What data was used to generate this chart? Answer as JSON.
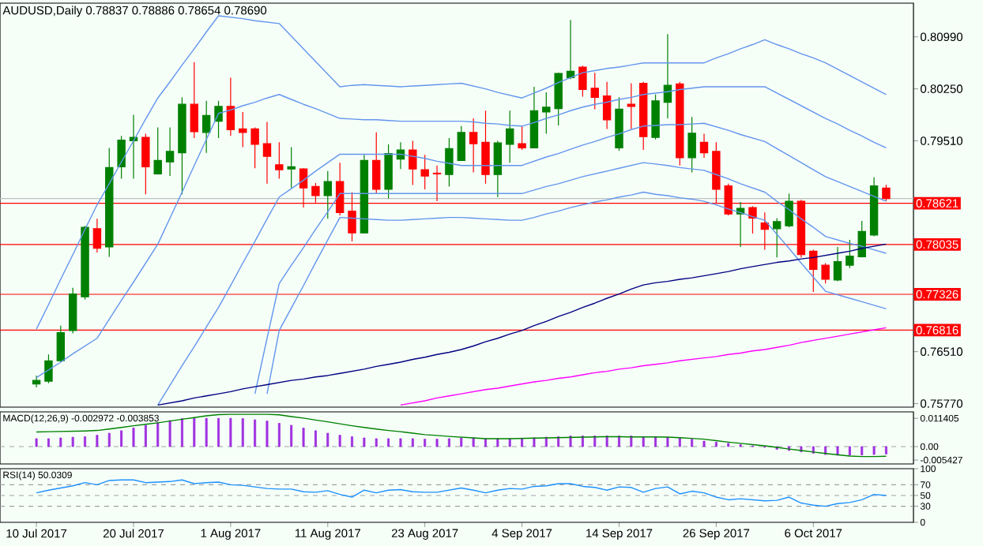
{
  "chart_data": [
    {
      "type": "candlestick",
      "title": "AUDUSD,Daily 0.78837 0.78886 0.78654 0.78690",
      "categories": [
        null,
        null,
        null,
        null,
        null,
        null,
        null,
        null,
        null,
        null,
        null,
        null,
        null,
        null,
        null,
        null,
        null,
        null,
        null,
        null,
        null,
        null,
        null,
        null,
        null,
        null,
        null,
        null,
        null,
        null,
        null,
        null,
        null,
        null,
        null,
        null,
        null,
        null,
        null,
        null,
        null,
        null,
        null,
        null,
        null,
        null,
        null,
        null,
        null,
        null,
        null,
        null,
        null,
        null,
        null,
        null,
        null,
        null,
        null,
        null,
        null,
        null,
        null,
        null,
        null,
        null,
        null,
        null,
        null,
        null,
        null
      ],
      "ohlc": [
        [
          0.7605,
          0.7617,
          0.76,
          0.761
        ],
        [
          0.7609,
          0.7647,
          0.7606,
          0.7638
        ],
        [
          0.7638,
          0.7688,
          0.7636,
          0.7678
        ],
        [
          0.7681,
          0.7742,
          0.7677,
          0.7733
        ],
        [
          0.7729,
          0.783,
          0.7725,
          0.7828
        ],
        [
          0.7826,
          0.784,
          0.7792,
          0.7798
        ],
        [
          0.78,
          0.7941,
          0.7786,
          0.7913
        ],
        [
          0.7914,
          0.7958,
          0.7897,
          0.7952
        ],
        [
          0.7951,
          0.7988,
          0.7897,
          0.7956
        ],
        [
          0.7956,
          0.7961,
          0.7875,
          0.7914
        ],
        [
          0.7904,
          0.797,
          0.7903,
          0.7923
        ],
        [
          0.7921,
          0.797,
          0.7901,
          0.7936
        ],
        [
          0.7934,
          0.8013,
          0.7875,
          0.8003
        ],
        [
          0.8003,
          0.8063,
          0.7955,
          0.7964
        ],
        [
          0.7963,
          0.8008,
          0.7934,
          0.7987
        ],
        [
          0.7979,
          0.8008,
          0.7955,
          0.8
        ],
        [
          0.8,
          0.8041,
          0.7958,
          0.7967
        ],
        [
          0.7968,
          0.7992,
          0.7942,
          0.7963
        ],
        [
          0.7968,
          0.797,
          0.7912,
          0.7946
        ],
        [
          0.7947,
          0.7978,
          0.789,
          0.7929
        ],
        [
          0.7917,
          0.7949,
          0.7897,
          0.791
        ],
        [
          0.7911,
          0.7942,
          0.7884,
          0.7914
        ],
        [
          0.7911,
          0.7912,
          0.7856,
          0.7884
        ],
        [
          0.7886,
          0.7891,
          0.7863,
          0.7873
        ],
        [
          0.7873,
          0.7908,
          0.784,
          0.7893
        ],
        [
          0.7893,
          0.792,
          0.7845,
          0.7849
        ],
        [
          0.7851,
          0.7878,
          0.7808,
          0.782
        ],
        [
          0.782,
          0.7931,
          0.7819,
          0.7923
        ],
        [
          0.7923,
          0.7963,
          0.7876,
          0.7882
        ],
        [
          0.7882,
          0.7946,
          0.7869,
          0.7933
        ],
        [
          0.7925,
          0.7949,
          0.7911,
          0.7938
        ],
        [
          0.7938,
          0.7951,
          0.7888,
          0.7911
        ],
        [
          0.791,
          0.7931,
          0.7882,
          0.7901
        ],
        [
          0.7905,
          0.7916,
          0.7865,
          0.7904
        ],
        [
          0.7903,
          0.7955,
          0.7886,
          0.794
        ],
        [
          0.7923,
          0.7972,
          0.7923,
          0.7963
        ],
        [
          0.7963,
          0.7983,
          0.7906,
          0.7947
        ],
        [
          0.7949,
          0.7994,
          0.789,
          0.7903
        ],
        [
          0.7903,
          0.7951,
          0.7871,
          0.7948
        ],
        [
          0.7946,
          0.7994,
          0.792,
          0.7968
        ],
        [
          0.7947,
          0.7972,
          0.7938,
          0.7941
        ],
        [
          0.7941,
          0.8028,
          0.7941,
          0.7994
        ],
        [
          0.7992,
          0.802,
          0.7961,
          0.7999
        ],
        [
          0.7997,
          0.8048,
          0.7973,
          0.8047
        ],
        [
          0.8041,
          0.8123,
          0.8039,
          0.805
        ],
        [
          0.8056,
          0.8058,
          0.8014,
          0.8024
        ],
        [
          0.8026,
          0.8048,
          0.7996,
          0.8013
        ],
        [
          0.8015,
          0.8035,
          0.7968,
          0.7981
        ],
        [
          0.7941,
          0.8013,
          0.7937,
          0.7996
        ],
        [
          0.8003,
          0.8033,
          0.7968,
          0.8
        ],
        [
          0.8033,
          0.8035,
          0.7938,
          0.7957
        ],
        [
          0.7956,
          0.8017,
          0.7953,
          0.8008
        ],
        [
          0.8006,
          0.8103,
          0.7983,
          0.803
        ],
        [
          0.8032,
          0.8035,
          0.7916,
          0.7927
        ],
        [
          0.7927,
          0.7985,
          0.7906,
          0.7962
        ],
        [
          0.7949,
          0.7961,
          0.7927,
          0.7934
        ],
        [
          0.7936,
          0.7949,
          0.7863,
          0.7882
        ],
        [
          0.7887,
          0.789,
          0.7845,
          0.7847
        ],
        [
          0.7847,
          0.7864,
          0.78,
          0.7855
        ],
        [
          0.7856,
          0.7858,
          0.7819,
          0.7841
        ],
        [
          0.7834,
          0.7849,
          0.7796,
          0.7825
        ],
        [
          0.7826,
          0.7841,
          0.7785,
          0.7836
        ],
        [
          0.783,
          0.7876,
          0.7828,
          0.7865
        ],
        [
          0.7865,
          0.7867,
          0.7785,
          0.7789
        ],
        [
          0.7794,
          0.7796,
          0.7736,
          0.7768
        ],
        [
          0.7774,
          0.7777,
          0.7748,
          0.7754
        ],
        [
          0.7753,
          0.78,
          0.7751,
          0.7779
        ],
        [
          0.7774,
          0.781,
          0.777,
          0.7787
        ],
        [
          0.7786,
          0.7837,
          0.7785,
          0.7822
        ],
        [
          0.7817,
          0.7899,
          0.7815,
          0.7887
        ],
        [
          0.78837,
          0.78886,
          0.78654,
          0.7869
        ]
      ],
      "colors": [
        "#008000",
        "#008000",
        "#008000",
        "#008000",
        "#008000",
        "#ff0000",
        "#008000",
        "#008000",
        "#008000",
        "#ff0000",
        "#008000",
        "#008000",
        "#008000",
        "#ff0000",
        "#008000",
        "#008000",
        "#ff0000",
        "#ff0000",
        "#ff0000",
        "#ff0000",
        "#ff0000",
        "#008000",
        "#ff0000",
        "#ff0000",
        "#008000",
        "#ff0000",
        "#ff0000",
        "#008000",
        "#ff0000",
        "#008000",
        "#008000",
        "#ff0000",
        "#ff0000",
        "#ff0000",
        "#008000",
        "#008000",
        "#ff0000",
        "#ff0000",
        "#008000",
        "#008000",
        "#ff0000",
        "#008000",
        "#008000",
        "#008000",
        "#008000",
        "#ff0000",
        "#ff0000",
        "#ff0000",
        "#008000",
        "#ff0000",
        "#ff0000",
        "#008000",
        "#008000",
        "#ff0000",
        "#008000",
        "#ff0000",
        "#ff0000",
        "#ff0000",
        "#008000",
        "#ff0000",
        "#ff0000",
        "#008000",
        "#008000",
        "#ff0000",
        "#ff0000",
        "#ff0000",
        "#008000",
        "#008000",
        "#008000",
        "#008000",
        "#ff0000"
      ],
      "series": [
        {
          "type": "line",
          "color": "#6495ed",
          "values": [
            0.7683,
            0.7718,
            0.7754,
            0.7789,
            0.7825,
            0.786,
            0.789,
            0.7921,
            0.7951,
            0.7982,
            0.8012,
            0.8035,
            0.8059,
            0.8082,
            0.8106,
            0.8129,
            0.8127,
            0.8125,
            0.8122,
            0.812,
            0.8118,
            0.81,
            0.8082,
            0.8064,
            0.8046,
            0.8028,
            0.803,
            0.8031,
            0.803,
            0.8029,
            0.8028,
            0.8029,
            0.803,
            0.8031,
            0.8032,
            0.8033,
            0.8029,
            0.8025,
            0.802,
            0.8016,
            0.8012,
            0.8019,
            0.8026,
            0.8034,
            0.8041,
            0.8048,
            0.8051,
            0.8054,
            0.8056,
            0.8059,
            0.8062,
            0.8062,
            0.8062,
            0.8062,
            0.8062,
            0.8062,
            0.8069,
            0.8075,
            0.8082,
            0.8088,
            0.8095,
            0.8088,
            0.8082,
            0.8075,
            0.8069,
            0.8062,
            0.8053,
            0.8044,
            0.8035,
            0.8026,
            0.8017
          ]
        },
        {
          "type": "line",
          "color": "#6495ed",
          "values": [
            0.7614,
            0.7625,
            0.7636,
            0.7648,
            0.7659,
            0.767,
            0.7697,
            0.7724,
            0.775,
            0.7777,
            0.7804,
            0.7841,
            0.7878,
            0.7916,
            0.7953,
            0.799,
            0.7995,
            0.8001,
            0.8006,
            0.8012,
            0.8017,
            0.801,
            0.8003,
            0.7997,
            0.799,
            0.7983,
            0.7982,
            0.7981,
            0.7981,
            0.798,
            0.7979,
            0.7979,
            0.7979,
            0.7979,
            0.7979,
            0.7979,
            0.7978,
            0.7976,
            0.7975,
            0.7973,
            0.7972,
            0.7977,
            0.7983,
            0.7988,
            0.7994,
            0.7999,
            0.8003,
            0.8006,
            0.801,
            0.8013,
            0.8017,
            0.8019,
            0.8021,
            0.8024,
            0.8026,
            0.8028,
            0.8028,
            0.8028,
            0.8028,
            0.8028,
            0.8028,
            0.8019,
            0.801,
            0.8001,
            0.7992,
            0.7983,
            0.7975,
            0.7966,
            0.7958,
            0.7949,
            0.7941
          ]
        },
        {
          "type": "line",
          "color": "#6495ed",
          "values": [
            null,
            null,
            null,
            null,
            null,
            null,
            null,
            null,
            null,
            null,
            0.7575,
            0.7603,
            0.7631,
            0.7658,
            0.7686,
            0.7714,
            0.7745,
            0.7777,
            0.7808,
            0.784,
            0.7871,
            0.7883,
            0.7895,
            0.7908,
            0.792,
            0.7932,
            0.7932,
            0.7932,
            0.7932,
            0.7932,
            0.7932,
            0.7929,
            0.7926,
            0.7922,
            0.7919,
            0.7916,
            0.7916,
            0.7916,
            0.7916,
            0.7916,
            0.7916,
            0.7922,
            0.7928,
            0.7933,
            0.7939,
            0.7945,
            0.795,
            0.7956,
            0.7961,
            0.7967,
            0.7972,
            0.7973,
            0.7974,
            0.7974,
            0.7975,
            0.7976,
            0.7971,
            0.7966,
            0.796,
            0.7955,
            0.795,
            0.794,
            0.793,
            0.792,
            0.791,
            0.79,
            0.7893,
            0.7886,
            0.7879,
            0.7872,
            0.7865
          ]
        },
        {
          "type": "line",
          "color": "#6495ed",
          "values": [
            null,
            null,
            null,
            null,
            null,
            null,
            null,
            null,
            null,
            null,
            null,
            null,
            null,
            null,
            null,
            null,
            null,
            null,
            0.7591,
            0.767,
            0.7748,
            0.7774,
            0.7799,
            0.7825,
            0.785,
            0.7876,
            0.7876,
            0.7876,
            0.7876,
            0.7876,
            0.7876,
            0.7876,
            0.7876,
            0.7876,
            0.7876,
            0.7876,
            0.7876,
            0.7876,
            0.7876,
            0.7876,
            0.7876,
            0.7881,
            0.7886,
            0.789,
            0.7895,
            0.79,
            0.7904,
            0.7908,
            0.7912,
            0.7916,
            0.792,
            0.7918,
            0.7916,
            0.7913,
            0.7911,
            0.7909,
            0.7903,
            0.7897,
            0.789,
            0.7884,
            0.7878,
            0.7865,
            0.7853,
            0.784,
            0.7828,
            0.7815,
            0.781,
            0.7805,
            0.7801,
            0.7796,
            0.7791
          ]
        },
        {
          "type": "line",
          "color": "#6495ed",
          "values": [
            null,
            null,
            null,
            null,
            null,
            null,
            null,
            null,
            null,
            null,
            null,
            null,
            null,
            null,
            null,
            null,
            null,
            null,
            null,
            0.7591,
            0.7681,
            0.7713,
            0.7745,
            0.7778,
            0.781,
            0.7842,
            0.7841,
            0.784,
            0.7839,
            0.7838,
            0.7838,
            0.7839,
            0.784,
            0.7841,
            0.7842,
            0.7842,
            0.7841,
            0.784,
            0.7839,
            0.7838,
            0.7838,
            0.7842,
            0.7847,
            0.7851,
            0.7856,
            0.786,
            0.7864,
            0.7867,
            0.7871,
            0.7874,
            0.7878,
            0.7875,
            0.7873,
            0.787,
            0.7868,
            0.7865,
            0.786,
            0.7854,
            0.7849,
            0.7843,
            0.7838,
            0.7818,
            0.7798,
            0.7777,
            0.7757,
            0.7737,
            0.7732,
            0.7727,
            0.7722,
            0.7717,
            0.7712
          ]
        },
        {
          "type": "line",
          "color": "#000080",
          "values": [
            null,
            null,
            null,
            null,
            null,
            null,
            null,
            null,
            null,
            null,
            0.7575,
            0.7578,
            0.7581,
            0.7585,
            0.7588,
            0.7591,
            0.7594,
            0.7598,
            0.7601,
            0.7604,
            0.7607,
            0.761,
            0.7612,
            0.7615,
            0.7617,
            0.762,
            0.7623,
            0.7626,
            0.763,
            0.7633,
            0.7636,
            0.764,
            0.7643,
            0.7647,
            0.765,
            0.7654,
            0.7659,
            0.7665,
            0.767,
            0.7676,
            0.7681,
            0.7688,
            0.7694,
            0.7701,
            0.7707,
            0.7714,
            0.772,
            0.7727,
            0.7733,
            0.774,
            0.7746,
            0.7749,
            0.7751,
            0.7754,
            0.7756,
            0.7759,
            0.7762,
            0.7765,
            0.7769,
            0.7772,
            0.7775,
            0.7778,
            0.778,
            0.7783,
            0.7785,
            0.7788,
            0.7791,
            0.7794,
            0.7798,
            0.7801,
            0.7804
          ]
        },
        {
          "type": "line",
          "color": "#ff00ff",
          "values": [
            null,
            null,
            null,
            null,
            null,
            null,
            null,
            null,
            null,
            null,
            null,
            null,
            null,
            null,
            null,
            null,
            null,
            null,
            null,
            null,
            null,
            null,
            null,
            null,
            null,
            null,
            null,
            null,
            null,
            null,
            0.7575,
            0.7578,
            0.7581,
            0.7585,
            0.7588,
            0.7591,
            0.7594,
            0.7597,
            0.7599,
            0.7602,
            0.7605,
            0.7608,
            0.761,
            0.7613,
            0.7615,
            0.7618,
            0.7621,
            0.7623,
            0.7626,
            0.7628,
            0.7631,
            0.7633,
            0.7635,
            0.7638,
            0.764,
            0.7642,
            0.7644,
            0.7647,
            0.7649,
            0.7652,
            0.7654,
            0.7657,
            0.766,
            0.7664,
            0.7667,
            0.767,
            0.7673,
            0.7676,
            0.7679,
            0.7682,
            0.7685
          ]
        }
      ],
      "ylim": [
        0.7572,
        0.8147
      ],
      "yticks": [
        {
          "value": 0.8099,
          "label": "0.80990"
        },
        {
          "value": 0.8025,
          "label": "0.80250"
        },
        {
          "value": 0.7951,
          "label": "0.79510"
        },
        {
          "value": 0.7651,
          "label": "0.76510"
        },
        {
          "value": 0.7577,
          "label": "0.75770"
        }
      ],
      "ref_lines": [
        {
          "axis": "y",
          "value": 0.7869,
          "color": "#c0c0c0"
        },
        {
          "axis": "y",
          "value": 0.78621,
          "label": "0.78621",
          "color": "#ff0000"
        },
        {
          "axis": "y",
          "value": 0.78035,
          "label": "0.78035",
          "color": "#ff0000"
        },
        {
          "axis": "y",
          "value": 0.77326,
          "label": "0.77326",
          "color": "#ff0000"
        },
        {
          "axis": "y",
          "value": 0.76816,
          "label": "0.76816",
          "color": "#ff0000"
        }
      ],
      "tick_labels": "y"
    },
    {
      "type": "bar",
      "title": "MACD(12,26,9) -0.002972 -0.003853",
      "categories": [
        null,
        null,
        null,
        null,
        null,
        null,
        null,
        null,
        null,
        null,
        null,
        null,
        null,
        null,
        null,
        null,
        null,
        null,
        null,
        null,
        null,
        null,
        null,
        null,
        null,
        null,
        null,
        null,
        null,
        null,
        null,
        null,
        null,
        null,
        null,
        null,
        null,
        null,
        null,
        null,
        null,
        null,
        null,
        null,
        null,
        null,
        null,
        null,
        null,
        null,
        null,
        null,
        null,
        null,
        null,
        null,
        null,
        null,
        null,
        null,
        null,
        null,
        null,
        null,
        null,
        null,
        null,
        null,
        null,
        null,
        null
      ],
      "series": [
        {
          "type": "bar",
          "color": "#a030e0",
          "values": [
            0.0032,
            0.0032,
            0.0035,
            0.0038,
            0.004,
            0.0046,
            0.0054,
            0.0064,
            0.0075,
            0.0086,
            0.0097,
            0.0105,
            0.0113,
            0.0114,
            0.0114,
            0.0114,
            0.0114,
            0.0113,
            0.0108,
            0.0103,
            0.0094,
            0.0086,
            0.0075,
            0.0064,
            0.0054,
            0.0046,
            0.004,
            0.0035,
            0.0032,
            0.0032,
            0.0032,
            0.0032,
            0.003,
            0.003,
            0.0032,
            0.0035,
            0.0035,
            0.0032,
            0.0032,
            0.0032,
            0.0032,
            0.0035,
            0.0038,
            0.004,
            0.0043,
            0.0043,
            0.0043,
            0.0043,
            0.0043,
            0.0043,
            0.004,
            0.004,
            0.0038,
            0.0035,
            0.003,
            0.0022,
            0.0018,
            0.0013,
            0.0008,
            0.0003,
            -0.0003,
            -0.0011,
            -0.0016,
            -0.0021,
            -0.0027,
            -0.0032,
            -0.0035,
            -0.0035,
            -0.0034,
            -0.0032,
            -0.003
          ]
        },
        {
          "type": "line",
          "color": "#008000",
          "values": [
            0.0059,
            0.006,
            0.0061,
            0.0062,
            0.0063,
            0.0065,
            0.0071,
            0.0077,
            0.0084,
            0.009,
            0.0096,
            0.0103,
            0.011,
            0.0117,
            0.0124,
            0.0129,
            0.013,
            0.013,
            0.013,
            0.013,
            0.0128,
            0.0121,
            0.0115,
            0.0107,
            0.01,
            0.0092,
            0.0084,
            0.0077,
            0.0071,
            0.0065,
            0.006,
            0.0054,
            0.0048,
            0.0045,
            0.0041,
            0.0038,
            0.0035,
            0.0032,
            0.0032,
            0.0032,
            0.0033,
            0.0034,
            0.0035,
            0.0036,
            0.0037,
            0.0038,
            0.0039,
            0.004,
            0.004,
            0.0039,
            0.0039,
            0.0039,
            0.0038,
            0.0036,
            0.0033,
            0.003,
            0.0024,
            0.0018,
            0.0013,
            0.0008,
            0.0003,
            -0.0003,
            -0.001,
            -0.0016,
            -0.0022,
            -0.0028,
            -0.0033,
            -0.0038,
            -0.004,
            -0.004,
            -0.0039
          ]
        }
      ],
      "ylim": [
        -0.007,
        0.014
      ],
      "yticks": [
        {
          "value": 0.011405,
          "label": "0.011405"
        },
        {
          "value": 0,
          "label": "0.00"
        },
        {
          "value": -0.005427,
          "label": "-0.005427"
        }
      ],
      "ref_lines": [
        {
          "axis": "y",
          "value": 0,
          "color": "#a0a0a0",
          "line_style": "dashed"
        }
      ],
      "tick_labels": "y"
    },
    {
      "type": "line",
      "title": "RSI(14) 50.0309",
      "categories": [
        "10 Jul 2017",
        null,
        null,
        null,
        null,
        null,
        null,
        null,
        "20 Jul 2017",
        null,
        null,
        null,
        null,
        null,
        null,
        null,
        "1 Aug 2017",
        null,
        null,
        null,
        null,
        null,
        null,
        null,
        "11 Aug 2017",
        null,
        null,
        null,
        null,
        null,
        null,
        null,
        "23 Aug 2017",
        null,
        null,
        null,
        null,
        null,
        null,
        null,
        "4 Sep 2017",
        null,
        null,
        null,
        null,
        null,
        null,
        null,
        "14 Sep 2017",
        null,
        null,
        null,
        null,
        null,
        null,
        null,
        "26 Sep 2017",
        null,
        null,
        null,
        null,
        null,
        null,
        null,
        "6 Oct 2017",
        null,
        null,
        null,
        null,
        null,
        null
      ],
      "series": [
        {
          "color": "#1e90ff",
          "values": [
            55,
            60,
            64,
            68,
            74,
            70,
            78,
            79,
            79,
            74,
            75,
            76,
            79,
            72,
            74,
            75,
            70,
            69,
            66,
            63,
            62,
            62,
            57,
            56,
            59,
            52,
            47,
            60,
            55,
            60,
            61,
            57,
            56,
            56,
            60,
            64,
            60,
            55,
            60,
            63,
            62,
            67,
            68,
            72,
            72,
            67,
            65,
            60,
            66,
            65,
            56,
            63,
            66,
            53,
            58,
            55,
            47,
            42,
            44,
            42,
            40,
            41,
            47,
            36,
            32,
            30,
            35,
            37,
            42,
            52,
            50
          ]
        }
      ],
      "ylim": [
        0,
        100
      ],
      "yticks": [
        0,
        30,
        50,
        70,
        100
      ],
      "ref_lines": [
        {
          "axis": "y",
          "value": 70,
          "color": "#a0a0a0",
          "line_style": "dashed"
        },
        {
          "axis": "y",
          "value": 50,
          "color": "#a0a0a0",
          "line_style": "dashed"
        },
        {
          "axis": "y",
          "value": 30,
          "color": "#a0a0a0",
          "line_style": "dashed"
        }
      ]
    }
  ]
}
